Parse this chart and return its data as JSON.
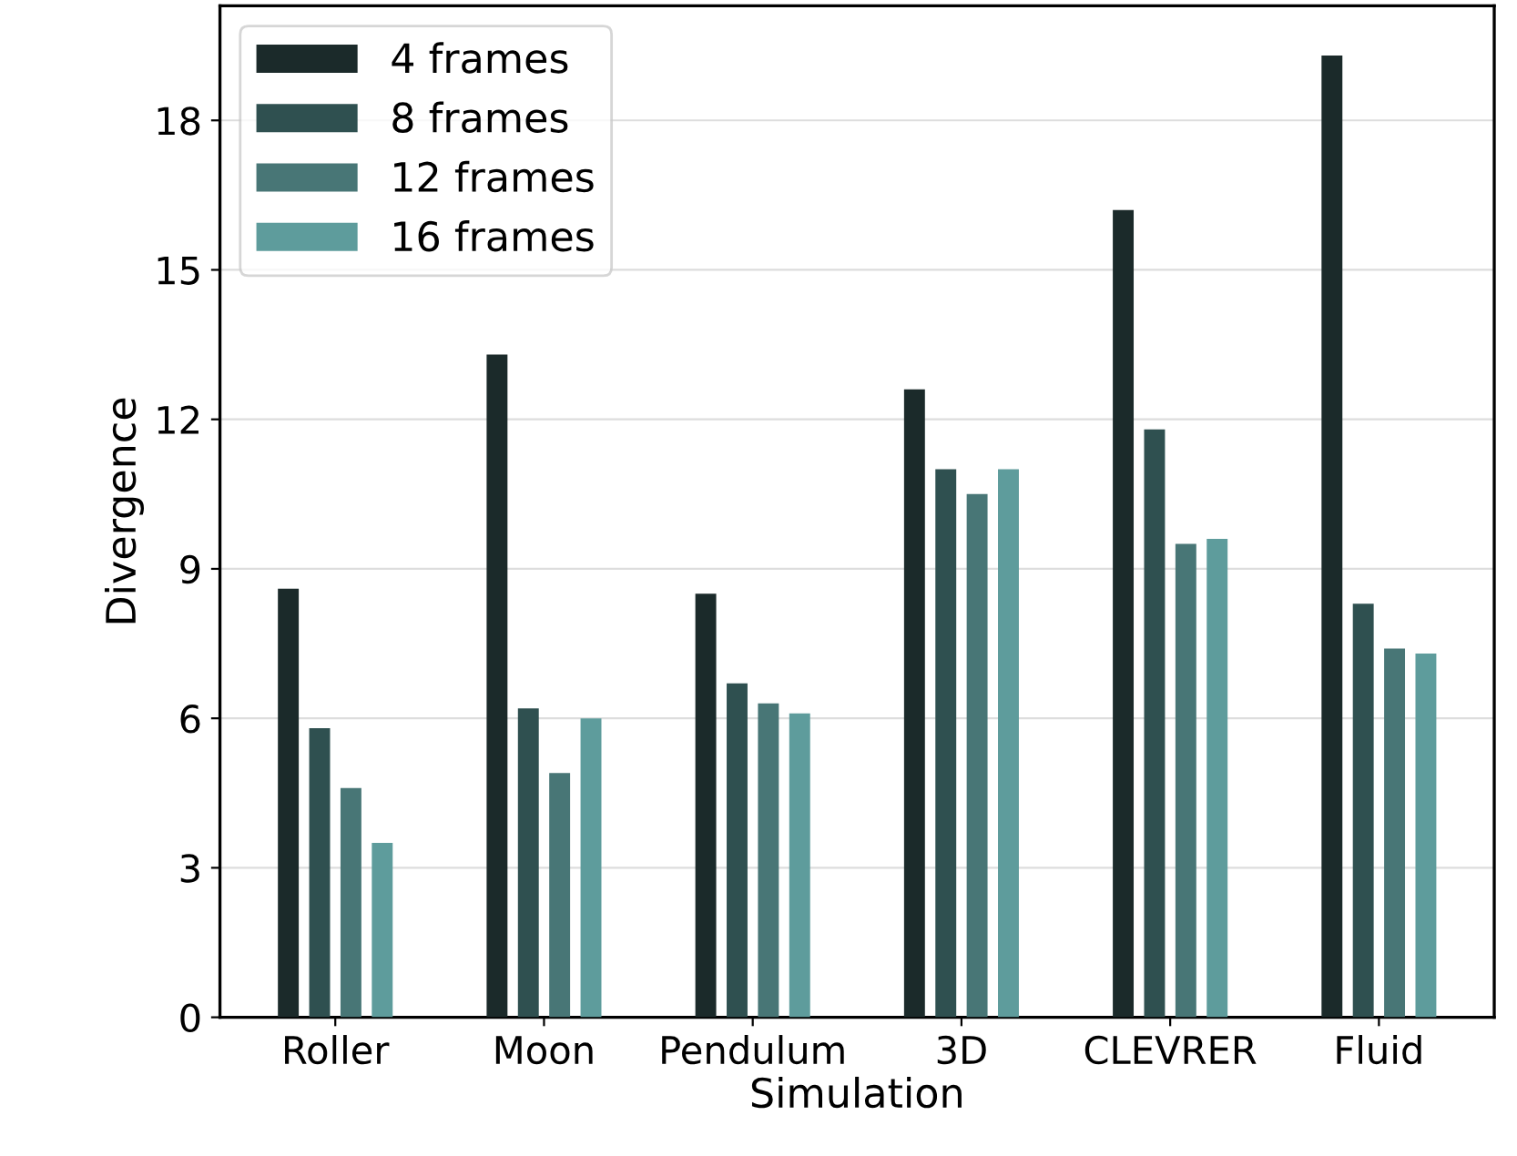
{
  "chart_data": {
    "type": "bar",
    "xlabel": "Simulation",
    "ylabel": "Divergence",
    "categories": [
      "Roller",
      "Moon",
      "Pendulum",
      "3D",
      "CLEVRER",
      "Fluid"
    ],
    "series": [
      {
        "name": "4 frames",
        "color": "#1b2a2a",
        "values": [
          8.6,
          13.3,
          8.5,
          12.6,
          16.2,
          19.3
        ]
      },
      {
        "name": "8 frames",
        "color": "#2f5050",
        "values": [
          5.8,
          6.2,
          6.7,
          11.0,
          11.8,
          8.3
        ]
      },
      {
        "name": "12 frames",
        "color": "#487676",
        "values": [
          4.6,
          4.9,
          6.3,
          10.5,
          9.5,
          7.4
        ]
      },
      {
        "name": "16 frames",
        "color": "#5e9c9c",
        "values": [
          3.5,
          6.0,
          6.1,
          11.0,
          9.6,
          7.3
        ]
      }
    ],
    "ylim": [
      0,
      20.3
    ],
    "yticks": [
      0,
      3,
      6,
      9,
      12,
      15,
      18
    ],
    "grid": "y",
    "legend": "top left"
  }
}
